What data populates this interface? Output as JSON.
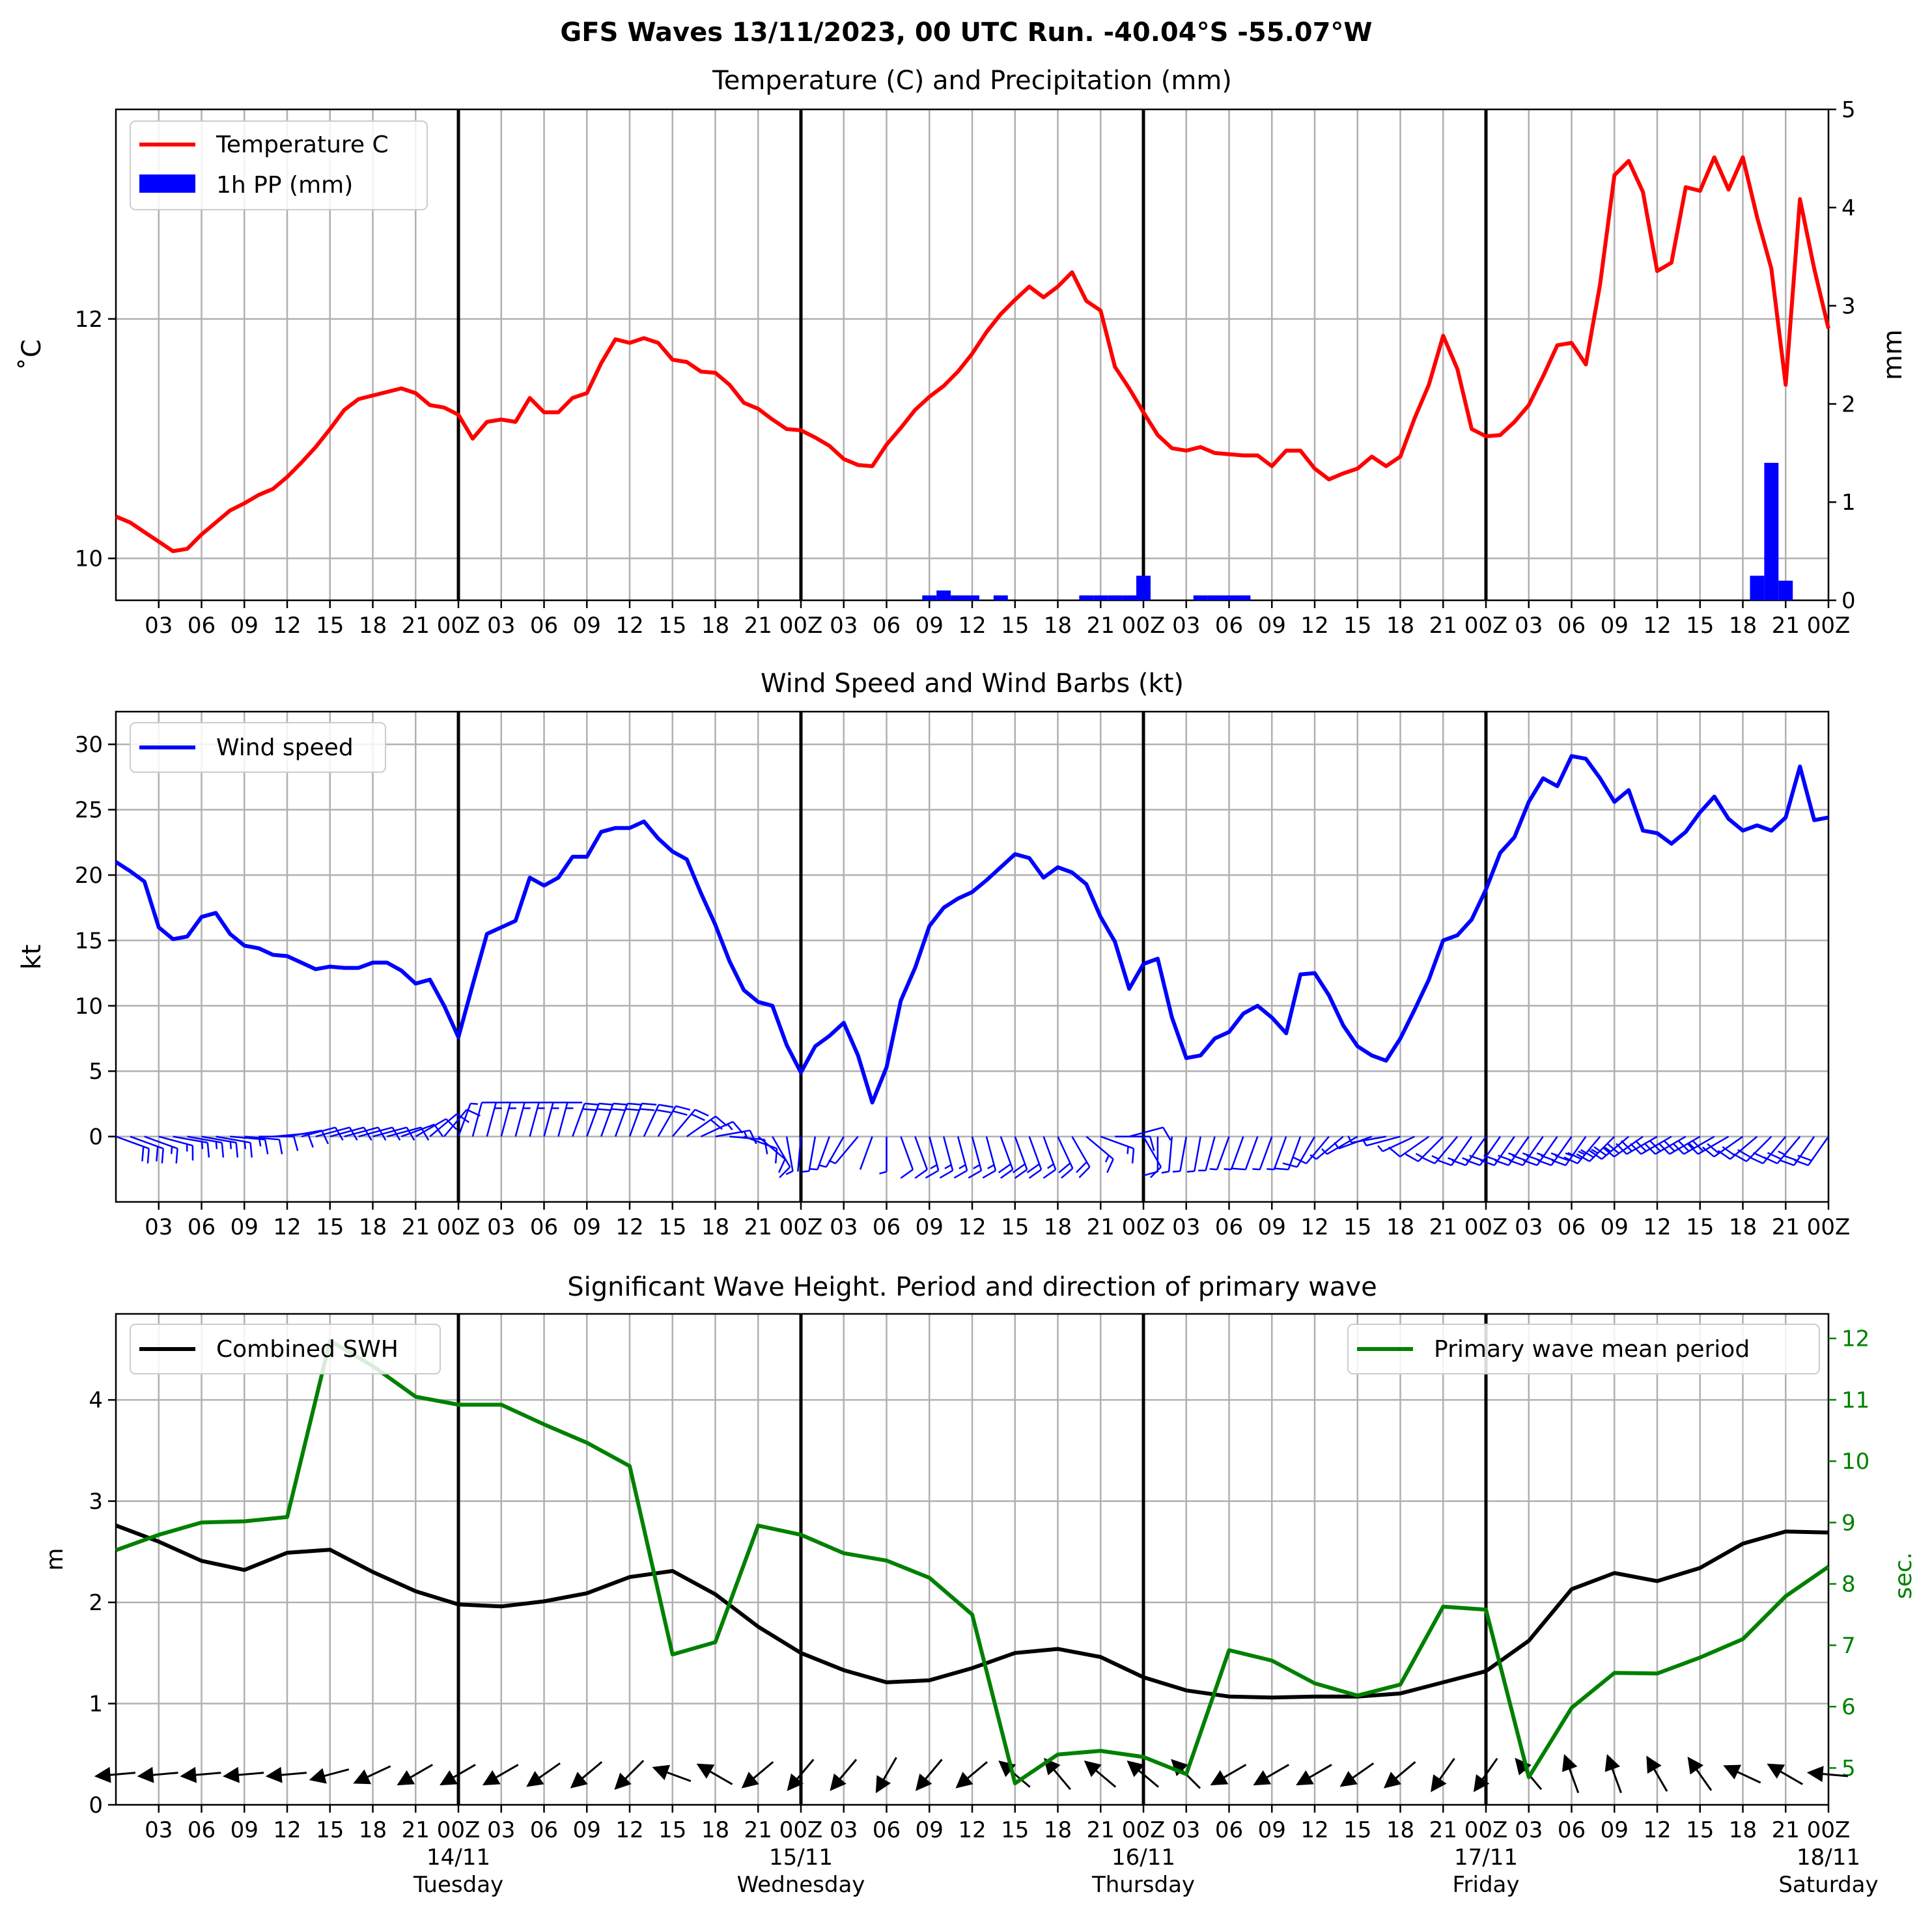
{
  "figure": {
    "suptitle": "GFS Waves 13/11/2023, 00 UTC Run. -40.04°S -55.07°W"
  },
  "colors": {
    "temperature": "#ff0000",
    "precip": "#0000ff",
    "wind": "#0000ff",
    "swh": "#000000",
    "period": "#008000",
    "grid": "#b0b0b0"
  },
  "time_axis": {
    "tick_labels": [
      "03",
      "06",
      "09",
      "12",
      "15",
      "18",
      "21",
      "00Z",
      "03",
      "06",
      "09",
      "12",
      "15",
      "18",
      "21",
      "00Z",
      "03",
      "06",
      "09",
      "12",
      "15",
      "18",
      "21",
      "00Z",
      "03",
      "06",
      "09",
      "12",
      "15",
      "18",
      "21",
      "00Z",
      "03",
      "06",
      "09",
      "12",
      "15",
      "18",
      "21",
      "00Z"
    ],
    "day_labels": [
      {
        "date": "14/11",
        "weekday": "Tuesday"
      },
      {
        "date": "15/11",
        "weekday": "Wednesday"
      },
      {
        "date": "16/11",
        "weekday": "Thursday"
      },
      {
        "date": "17/11",
        "weekday": "Friday"
      },
      {
        "date": "18/11",
        "weekday": "Saturday"
      }
    ],
    "day_boundaries_h": [
      24,
      48,
      72,
      96
    ],
    "range_h": [
      0,
      120
    ]
  },
  "chart_data": [
    {
      "type": "line",
      "title": "Temperature (C) and Precipitation (mm)",
      "ylabel": "$^\\circ$C",
      "ylabel_right": "mm",
      "ylim": [
        9.65,
        13.75
      ],
      "ylim_right": [
        0,
        5
      ],
      "yticks": [
        10,
        12
      ],
      "yticks_right": [
        0,
        1,
        2,
        3,
        4,
        5
      ],
      "legend": [
        "Temperature C",
        "1h PP (mm)"
      ],
      "legend_placement": "upper-left",
      "temperature": {
        "x": [
          0,
          1,
          2,
          3,
          4,
          5,
          6,
          7,
          8,
          9,
          10,
          11,
          12,
          13,
          14,
          15,
          16,
          17,
          18,
          19,
          20,
          21,
          22,
          23,
          24,
          25,
          26,
          27,
          28,
          29,
          30,
          31,
          32,
          33,
          34,
          35,
          36,
          37,
          38,
          39,
          40,
          41,
          42,
          43,
          44,
          45,
          46,
          47,
          48,
          49,
          50,
          51,
          52,
          53,
          54,
          55,
          56,
          57,
          58,
          59,
          60,
          61,
          62,
          63,
          64,
          65,
          66,
          67,
          68,
          69,
          70,
          71,
          72,
          73,
          74,
          75,
          76,
          77,
          78,
          79,
          80,
          81,
          82,
          83,
          84,
          85,
          86,
          87,
          88,
          89,
          90,
          91,
          92,
          93,
          94,
          95,
          96,
          97,
          98,
          99,
          100,
          101,
          102,
          103,
          104,
          105,
          106,
          107,
          108,
          109,
          110,
          111,
          112,
          113,
          114,
          115,
          116,
          117,
          118,
          119,
          120
        ],
        "values": [
          10.35,
          10.3,
          10.22,
          10.14,
          10.06,
          10.08,
          10.2,
          10.3,
          10.4,
          10.46,
          10.53,
          10.58,
          10.68,
          10.8,
          10.93,
          11.08,
          11.24,
          11.33,
          11.36,
          11.39,
          11.42,
          11.38,
          11.28,
          11.26,
          11.2,
          11.0,
          11.14,
          11.16,
          11.14,
          11.34,
          11.22,
          11.22,
          11.34,
          11.38,
          11.63,
          11.83,
          11.8,
          11.84,
          11.8,
          11.66,
          11.64,
          11.56,
          11.55,
          11.45,
          11.3,
          11.25,
          11.16,
          11.08,
          11.07,
          11.01,
          10.94,
          10.83,
          10.78,
          10.77,
          10.95,
          11.09,
          11.24,
          11.35,
          11.44,
          11.56,
          11.71,
          11.89,
          12.04,
          12.16,
          12.27,
          12.18,
          12.27,
          12.39,
          12.15,
          12.07,
          11.6,
          11.42,
          11.22,
          11.03,
          10.92,
          10.9,
          10.93,
          10.88,
          10.87,
          10.86,
          10.86,
          10.77,
          10.9,
          10.9,
          10.75,
          10.66,
          10.71,
          10.75,
          10.85,
          10.77,
          10.85,
          11.17,
          11.45,
          11.86,
          11.58,
          11.08,
          11.02,
          11.03,
          11.14,
          11.28,
          11.52,
          11.78,
          11.8,
          11.62,
          12.29,
          13.2,
          13.32,
          13.06,
          12.4,
          12.47,
          13.1,
          13.07,
          13.35,
          13.08,
          13.35,
          12.85,
          12.42,
          11.45,
          13.0,
          12.42,
          11.92
        ]
      },
      "precip_1h": {
        "x": [
          57,
          58,
          59,
          60,
          62,
          68,
          69,
          70,
          71,
          72,
          76,
          77,
          78,
          79,
          115,
          116,
          117
        ],
        "values": [
          0.05,
          0.1,
          0.05,
          0.05,
          0.05,
          0.05,
          0.05,
          0.05,
          0.05,
          0.25,
          0.05,
          0.05,
          0.05,
          0.05,
          0.25,
          1.4,
          0.2
        ]
      }
    },
    {
      "type": "line",
      "title": "Wind Speed and Wind Barbs (kt)",
      "ylabel": "kt",
      "ylim": [
        -5,
        32.5
      ],
      "yticks": [
        0,
        5,
        10,
        15,
        20,
        25,
        30
      ],
      "legend": [
        "Wind speed"
      ],
      "legend_placement": "upper-left",
      "series": [
        {
          "name": "Wind speed",
          "x": [
            0,
            1,
            2,
            3,
            4,
            5,
            6,
            7,
            8,
            9,
            10,
            11,
            12,
            13,
            14,
            15,
            16,
            17,
            18,
            19,
            20,
            21,
            22,
            23,
            24,
            25,
            26,
            27,
            28,
            29,
            30,
            31,
            32,
            33,
            34,
            35,
            36,
            37,
            38,
            39,
            40,
            41,
            42,
            43,
            44,
            45,
            46,
            47,
            48,
            49,
            50,
            51,
            52,
            53,
            54,
            55,
            56,
            57,
            58,
            59,
            60,
            61,
            62,
            63,
            64,
            65,
            66,
            67,
            68,
            69,
            70,
            71,
            72,
            73,
            74,
            75,
            76,
            77,
            78,
            79,
            80,
            81,
            82,
            83,
            84,
            85,
            86,
            87,
            88,
            89,
            90,
            91,
            92,
            93,
            94,
            95,
            96,
            97,
            98,
            99,
            100,
            101,
            102,
            103,
            104,
            105,
            106,
            107,
            108,
            109,
            110,
            111,
            112,
            113,
            114,
            115,
            116,
            117,
            118,
            119,
            120
          ],
          "values": [
            21.0,
            20.3,
            19.5,
            16.0,
            15.1,
            15.3,
            16.8,
            17.1,
            15.5,
            14.6,
            14.4,
            13.9,
            13.8,
            13.3,
            12.8,
            13.0,
            12.9,
            12.9,
            13.3,
            13.3,
            12.7,
            11.7,
            12.0,
            10.0,
            7.6,
            11.6,
            15.5,
            16.0,
            16.5,
            19.8,
            19.2,
            19.8,
            21.4,
            21.4,
            23.3,
            23.6,
            23.6,
            24.1,
            22.8,
            21.8,
            21.2,
            18.6,
            16.2,
            13.4,
            11.2,
            10.3,
            10.0,
            7.0,
            4.9,
            6.9,
            7.7,
            8.7,
            6.2,
            2.6,
            5.3,
            10.4,
            12.9,
            16.1,
            17.5,
            18.2,
            18.7,
            19.6,
            20.6,
            21.6,
            21.3,
            19.8,
            20.6,
            20.2,
            19.3,
            16.8,
            14.9,
            11.3,
            13.2,
            13.6,
            9.1,
            6.0,
            6.2,
            7.5,
            8.0,
            9.4,
            10.0,
            9.1,
            7.9,
            12.4,
            12.5,
            10.8,
            8.5,
            6.9,
            6.2,
            5.8,
            7.5,
            9.7,
            12.0,
            15.0,
            15.4,
            16.6,
            18.9,
            21.7,
            22.9,
            25.6,
            27.4,
            26.8,
            29.1,
            28.9,
            27.4,
            25.6,
            26.5,
            23.4,
            23.2,
            22.4,
            23.3,
            24.8,
            26.0,
            24.3,
            23.4,
            23.8,
            23.4,
            24.4,
            28.3,
            24.2,
            24.4
          ]
        }
      ],
      "barbs": {
        "x": [
          0,
          1,
          2,
          3,
          4,
          5,
          6,
          7,
          8,
          9,
          10,
          11,
          12,
          13,
          14,
          15,
          16,
          17,
          18,
          19,
          20,
          21,
          22,
          23,
          24,
          25,
          26,
          27,
          28,
          29,
          30,
          31,
          32,
          33,
          34,
          35,
          36,
          37,
          38,
          39,
          40,
          41,
          42,
          43,
          44,
          45,
          46,
          47,
          48,
          49,
          50,
          51,
          52,
          53,
          54,
          55,
          56,
          57,
          58,
          59,
          60,
          61,
          62,
          63,
          64,
          65,
          66,
          67,
          68,
          69,
          70,
          71,
          72,
          73,
          74,
          75,
          76,
          77,
          78,
          79,
          80,
          81,
          82,
          83,
          84,
          85,
          86,
          87,
          88,
          89,
          90,
          91,
          92,
          93,
          94,
          95,
          96,
          97,
          98,
          99,
          100,
          101,
          102,
          103,
          104,
          105,
          106,
          107,
          108,
          109,
          110,
          111,
          112,
          113,
          114,
          115,
          116,
          117,
          118,
          119,
          120
        ],
        "direction_deg": [
          110,
          110,
          110,
          105,
          100,
          100,
          100,
          100,
          95,
          95,
          90,
          85,
          80,
          75,
          75,
          75,
          75,
          75,
          75,
          75,
          70,
          60,
          50,
          40,
          20,
          15,
          15,
          15,
          15,
          15,
          15,
          15,
          20,
          20,
          20,
          20,
          20,
          25,
          30,
          40,
          55,
          65,
          80,
          95,
          110,
          130,
          150,
          170,
          185,
          190,
          200,
          210,
          220,
          200,
          180,
          160,
          160,
          165,
          165,
          165,
          165,
          165,
          160,
          160,
          160,
          160,
          155,
          150,
          130,
          110,
          90,
          75,
          150,
          180,
          185,
          190,
          190,
          195,
          200,
          200,
          200,
          200,
          200,
          200,
          210,
          220,
          230,
          240,
          250,
          260,
          255,
          245,
          235,
          225,
          220,
          215,
          215,
          215,
          215,
          215,
          215,
          215,
          215,
          215,
          220,
          225,
          230,
          235,
          240,
          240,
          240,
          240,
          240,
          240,
          235,
          230,
          225,
          220,
          220,
          215,
          215
        ]
      }
    },
    {
      "type": "line",
      "title": "Significant Wave Height. Period and direction of primary wave",
      "ylabel": "m",
      "ylabel_right": "sec.",
      "ylim": [
        0,
        4.85
      ],
      "ylim_right": [
        4.4,
        12.4
      ],
      "yticks": [
        0,
        1,
        2,
        3,
        4
      ],
      "yticks_right": [
        5,
        6,
        7,
        8,
        9,
        10,
        11,
        12
      ],
      "legend_left": "Combined SWH",
      "legend_right": "Primary wave mean period",
      "series": [
        {
          "name": "Combined SWH",
          "x": [
            0,
            3,
            6,
            9,
            12,
            15,
            18,
            21,
            24,
            27,
            30,
            33,
            36,
            39,
            42,
            45,
            48,
            51,
            54,
            57,
            60,
            63,
            66,
            69,
            72,
            75,
            78,
            81,
            84,
            87,
            90,
            93,
            96,
            99,
            102,
            105,
            108,
            111,
            114,
            117,
            120
          ],
          "values": [
            2.76,
            2.6,
            2.41,
            2.32,
            2.49,
            2.52,
            2.3,
            2.11,
            1.98,
            1.96,
            2.01,
            2.09,
            2.25,
            2.31,
            2.08,
            1.76,
            1.5,
            1.33,
            1.21,
            1.23,
            1.35,
            1.5,
            1.54,
            1.46,
            1.26,
            1.13,
            1.07,
            1.06,
            1.07,
            1.07,
            1.1,
            1.21,
            1.32,
            1.62,
            2.13,
            2.29,
            2.21,
            2.34,
            2.58,
            2.7,
            2.69
          ]
        },
        {
          "name": "Primary wave mean period",
          "x": [
            0,
            3,
            6,
            9,
            12,
            15,
            18,
            21,
            24,
            27,
            30,
            33,
            36,
            39,
            42,
            45,
            48,
            51,
            54,
            57,
            60,
            63,
            66,
            69,
            72,
            75,
            78,
            81,
            84,
            87,
            90,
            93,
            96,
            99,
            102,
            105,
            108,
            111,
            114,
            117,
            120
          ],
          "values": [
            8.55,
            8.8,
            9.0,
            9.02,
            9.09,
            11.96,
            11.55,
            11.05,
            10.92,
            10.92,
            10.6,
            10.3,
            9.92,
            6.85,
            7.05,
            8.95,
            8.8,
            8.5,
            8.38,
            8.1,
            7.5,
            4.75,
            5.22,
            5.28,
            5.18,
            4.9,
            6.92,
            6.75,
            6.38,
            6.18,
            6.36,
            7.63,
            7.58,
            4.85,
            5.98,
            6.55,
            6.54,
            6.8,
            7.1,
            7.8,
            8.28
          ]
        }
      ],
      "direction_arrows": {
        "x": [
          0,
          3,
          6,
          9,
          12,
          15,
          18,
          21,
          24,
          27,
          30,
          33,
          36,
          39,
          42,
          45,
          48,
          51,
          54,
          57,
          60,
          63,
          66,
          69,
          72,
          75,
          78,
          81,
          84,
          87,
          90,
          93,
          96,
          99,
          102,
          105,
          108,
          111,
          114,
          117,
          120
        ],
        "direction_deg": [
          265,
          265,
          265,
          265,
          265,
          255,
          245,
          240,
          240,
          240,
          235,
          230,
          225,
          290,
          300,
          230,
          220,
          220,
          210,
          220,
          230,
          310,
          320,
          310,
          310,
          315,
          240,
          240,
          240,
          235,
          230,
          215,
          215,
          320,
          340,
          340,
          330,
          325,
          295,
          300,
          275
        ]
      }
    }
  ]
}
